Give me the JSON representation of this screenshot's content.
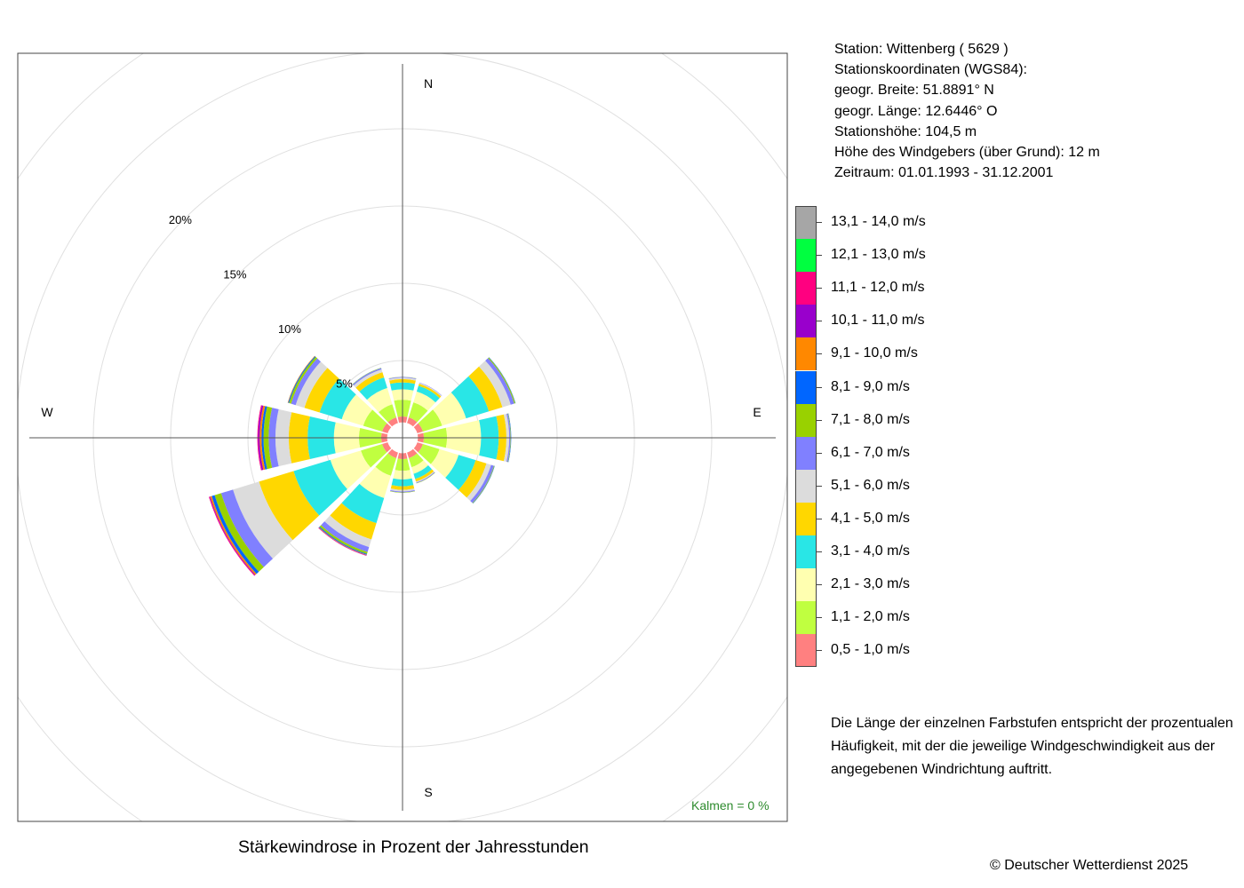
{
  "chart_data": {
    "type": "wind-rose",
    "title": "Stärkewindrose in Prozent der Jahresstunden",
    "directions": [
      {
        "label": "N",
        "angle": 0
      },
      {
        "label": "E",
        "angle": 90
      },
      {
        "label": "S",
        "angle": 180
      },
      {
        "label": "W",
        "angle": 270
      }
    ],
    "ring_labels": [
      {
        "label": "5%",
        "value": 5
      },
      {
        "label": "10%",
        "value": 10
      },
      {
        "label": "15%",
        "value": 15
      },
      {
        "label": "20%",
        "value": 20
      }
    ],
    "rmax": 20,
    "speed_classes": [
      {
        "label": "0,5 - 1,0 m/s",
        "color": "#ff8080"
      },
      {
        "label": "1,1 - 2,0 m/s",
        "color": "#c0ff40"
      },
      {
        "label": "2,1 - 3,0 m/s",
        "color": "#ffffb0"
      },
      {
        "label": "3,1 - 4,0 m/s",
        "color": "#29e6e6"
      },
      {
        "label": "4,1 - 5,0 m/s",
        "color": "#ffd700"
      },
      {
        "label": "5,1 - 6,0 m/s",
        "color": "#dcdcdc"
      },
      {
        "label": "6,1 - 7,0 m/s",
        "color": "#8080ff"
      },
      {
        "label": "7,1 - 8,0 m/s",
        "color": "#99d100"
      },
      {
        "label": "8,1 - 9,0 m/s",
        "color": "#0066ff"
      },
      {
        "label": "9,1 - 10,0 m/s",
        "color": "#ff8800"
      },
      {
        "label": "10,1 - 11,0 m/s",
        "color": "#9900cc"
      },
      {
        "label": "11,1 - 12,0 m/s",
        "color": "#ff0080"
      },
      {
        "label": "12,1 - 13,0 m/s",
        "color": "#00ff40"
      },
      {
        "label": "13,1 - 14,0 m/s",
        "color": "#a6a6a6"
      }
    ],
    "sectors": [
      {
        "direction": 0,
        "values": [
          0.38,
          1.08,
          0.68,
          0.44,
          0.22,
          0.1,
          0.04,
          0.01,
          0,
          0,
          0,
          0,
          0,
          0
        ]
      },
      {
        "direction": 30,
        "values": [
          0.38,
          1.02,
          0.73,
          0.39,
          0.14,
          0.06,
          0.02,
          0,
          0,
          0,
          0,
          0,
          0,
          0
        ]
      },
      {
        "direction": 60,
        "values": [
          0.38,
          1.3,
          1.62,
          1.54,
          0.92,
          0.56,
          0.24,
          0.07,
          0.02,
          0,
          0,
          0,
          0,
          0
        ]
      },
      {
        "direction": 90,
        "values": [
          0.38,
          1.5,
          2.2,
          1.14,
          0.5,
          0.18,
          0.08,
          0.03,
          0.02,
          0,
          0,
          0,
          0,
          0
        ]
      },
      {
        "direction": 120,
        "values": [
          0.38,
          1.12,
          1.29,
          1.16,
          0.73,
          0.31,
          0.19,
          0.04,
          0.02,
          0,
          0,
          0,
          0,
          0
        ]
      },
      {
        "direction": 150,
        "values": [
          0.38,
          0.61,
          0.45,
          0.35,
          0.18,
          0.06,
          0.04,
          0.02,
          0,
          0,
          0,
          0,
          0,
          0
        ]
      },
      {
        "direction": 180,
        "values": [
          0.38,
          0.76,
          0.56,
          0.44,
          0.23,
          0.11,
          0.06,
          0.02,
          0,
          0,
          0,
          0,
          0,
          0
        ]
      },
      {
        "direction": 210,
        "values": [
          0.38,
          1.19,
          1.51,
          1.7,
          1.1,
          0.52,
          0.33,
          0.13,
          0.06,
          0.03,
          0.02,
          0.02,
          0,
          0
        ]
      },
      {
        "direction": 240,
        "values": [
          0.38,
          1.44,
          2.06,
          2.49,
          2.34,
          1.76,
          0.8,
          0.44,
          0.2,
          0.1,
          0.04,
          0.05,
          0,
          0
        ]
      },
      {
        "direction": 270,
        "values": [
          0.38,
          1.44,
          1.62,
          1.7,
          1.22,
          0.86,
          0.44,
          0.33,
          0.13,
          0.12,
          0.1,
          0.05,
          0,
          0
        ]
      },
      {
        "direction": 300,
        "values": [
          0.38,
          1.28,
          1.45,
          1.5,
          1.03,
          0.59,
          0.31,
          0.14,
          0.06,
          0.03,
          0,
          0,
          0,
          0
        ]
      },
      {
        "direction": 330,
        "values": [
          0.38,
          0.89,
          1.1,
          0.72,
          0.35,
          0.19,
          0.08,
          0.02,
          0.01,
          0,
          0,
          0,
          0,
          0
        ]
      }
    ],
    "inner_radius": 1.0,
    "grid": true
  },
  "station": {
    "line1": "Station:  Wittenberg  ( 5629 )",
    "line2": "Stationskoordinaten (WGS84):",
    "line3": "geogr. Breite: 51.8891° N",
    "line4": "geogr. Länge: 12.6446° O",
    "line5": "Stationshöhe: 104,5 m",
    "line6": "Höhe des Windgebers (über Grund): 12 m",
    "line7": "Zeitraum: 01.01.1993 - 31.12.2001"
  },
  "note": {
    "line1": "Die Länge der einzelnen Farbstufen entspricht der prozentualen",
    "line2": "Häufigkeit, mit der die jeweilige Windgeschwindigkeit aus der",
    "line3": "angegebenen Windrichtung auftritt."
  },
  "calm": "Kalmen  =  0 %",
  "copyright": "© Deutscher Wetterdienst  2025"
}
